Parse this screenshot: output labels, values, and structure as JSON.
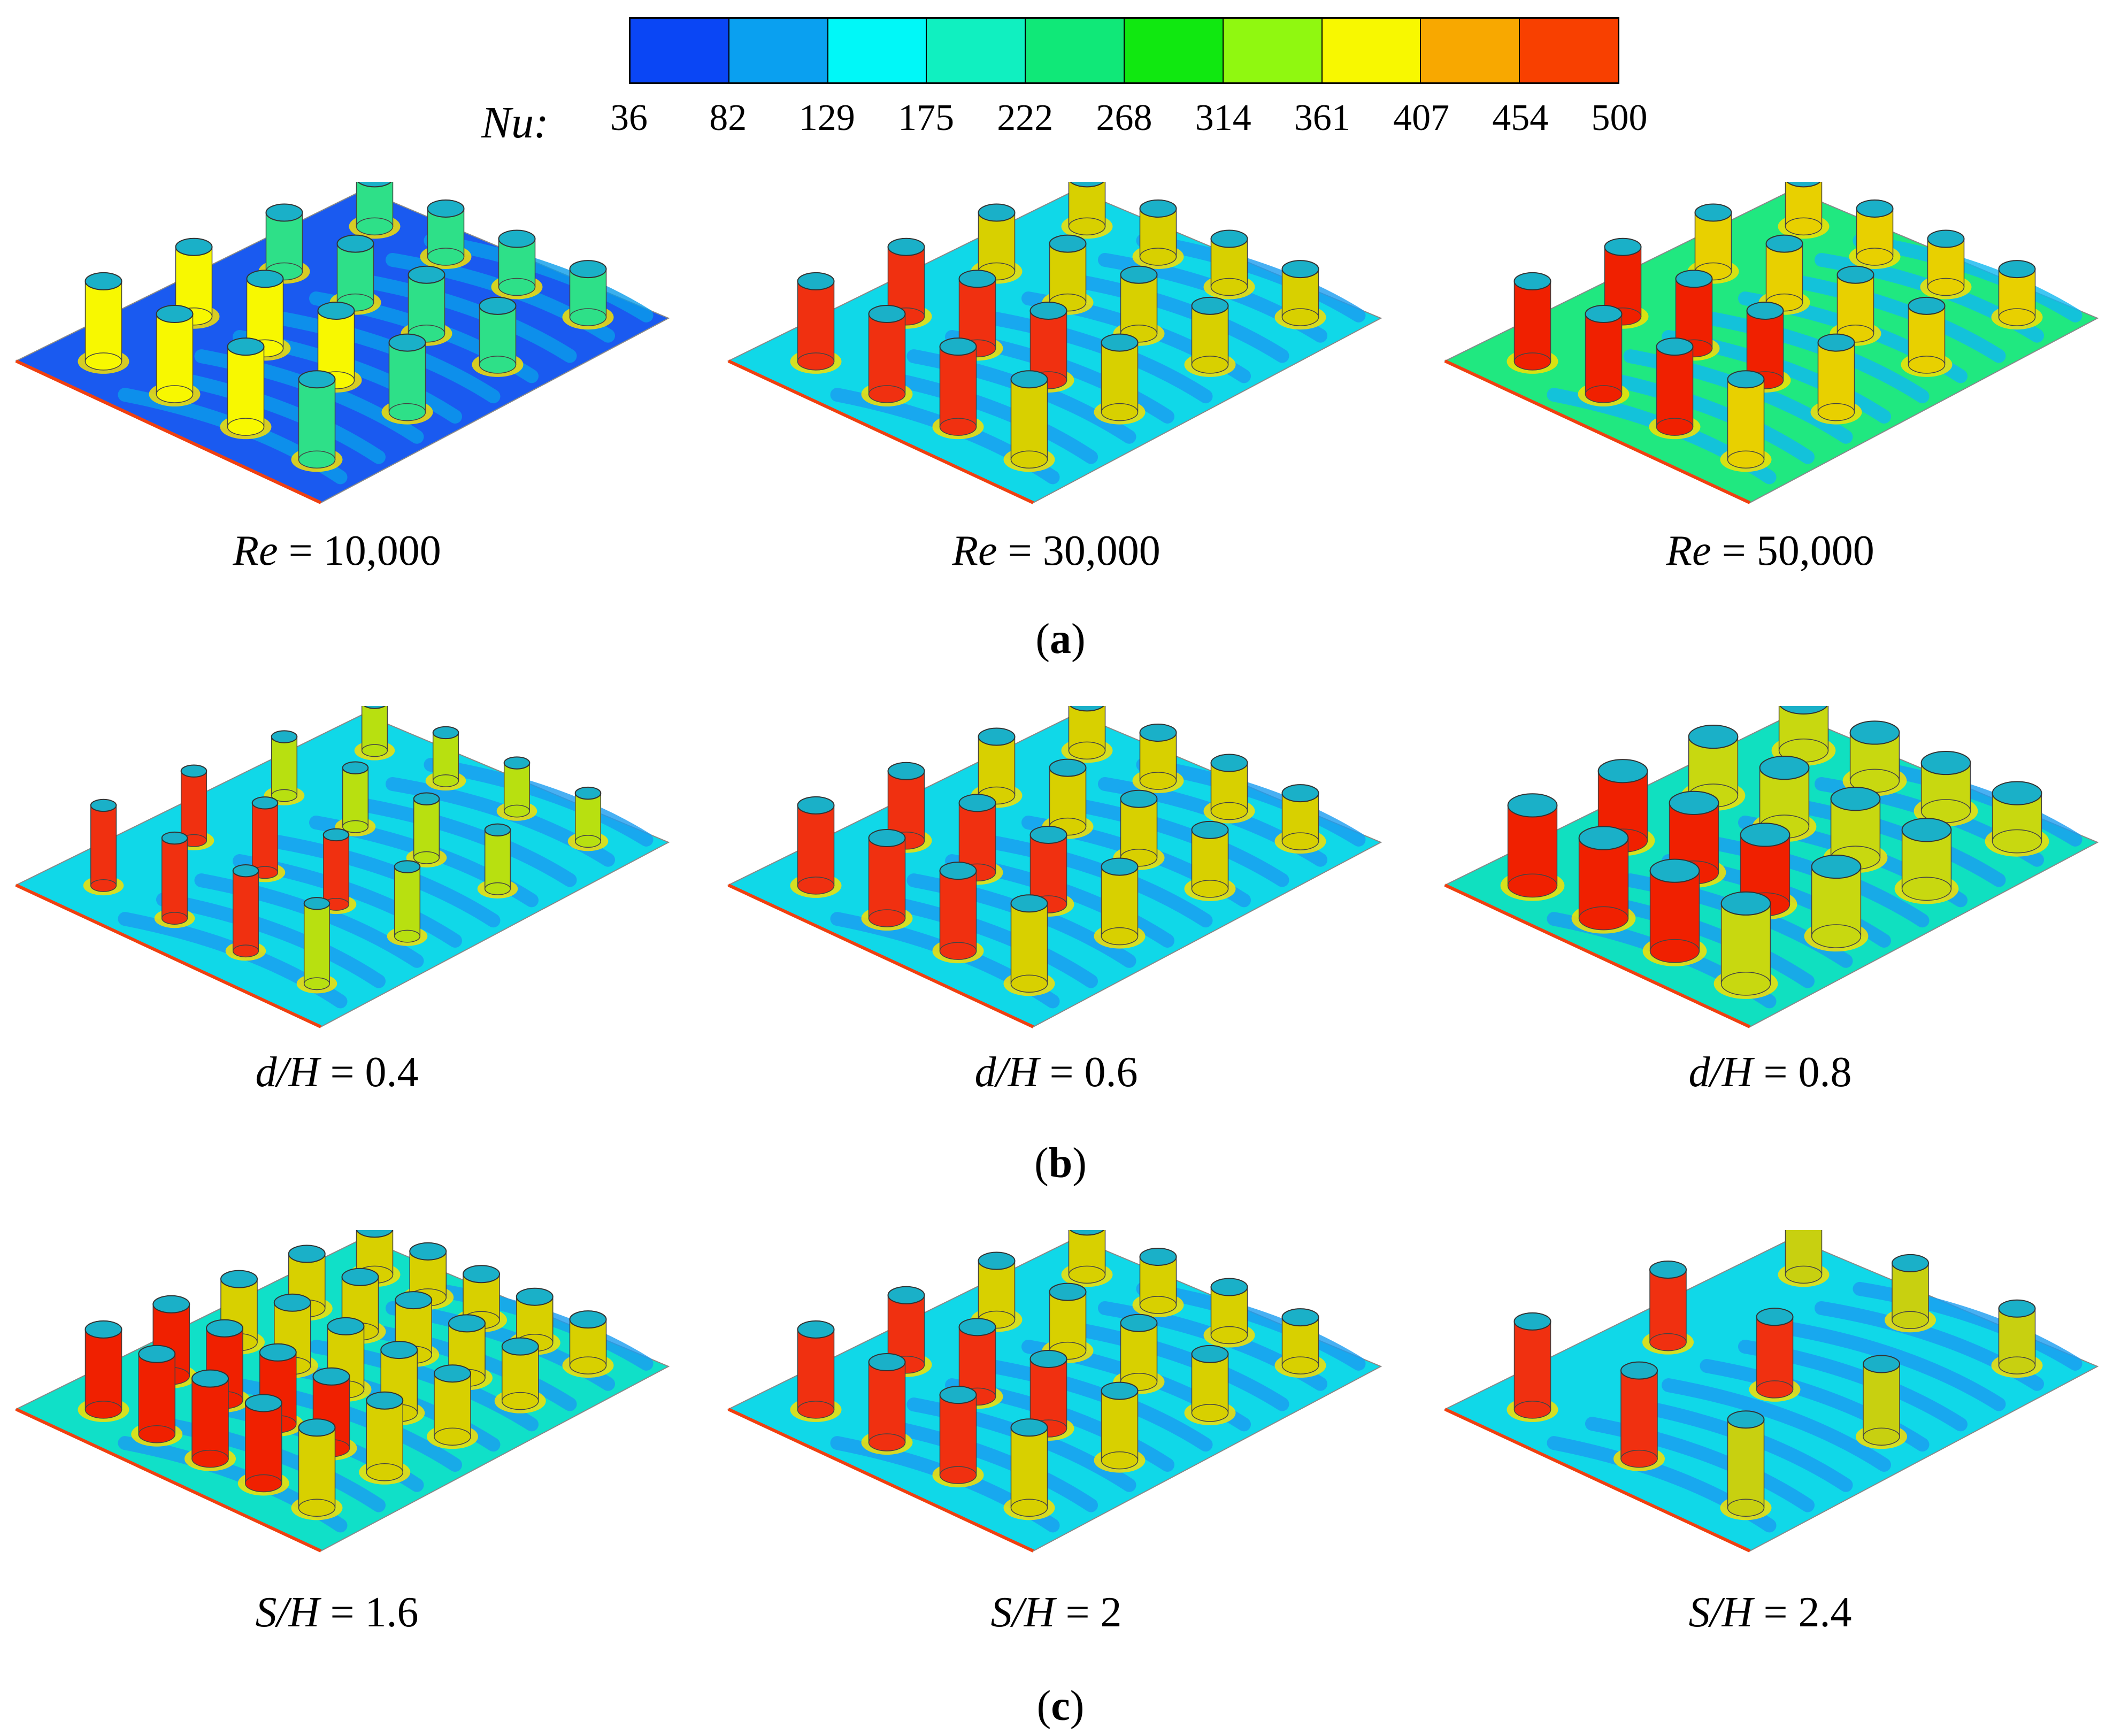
{
  "colorbar": {
    "title": "Nu:",
    "ticks": [
      "36",
      "82",
      "129",
      "175",
      "222",
      "268",
      "314",
      "361",
      "407",
      "454",
      "500"
    ],
    "colors": [
      "#0a46f5",
      "#0aa0f0",
      "#00f8f8",
      "#10f0c0",
      "#10e878",
      "#10e810",
      "#90f810",
      "#f8f800",
      "#f8a800",
      "#f84000"
    ]
  },
  "groups": [
    {
      "label": "a",
      "panels": [
        {
          "caption": "Re = 10,000",
          "caption_var": "Re",
          "caption_rest": " = 10,000",
          "plate_color": "#1a5af0",
          "wake_color": "#0a9cea",
          "cyl_color": "#2ee088",
          "hot_color": "#f8f800"
        },
        {
          "caption": "Re = 30,000",
          "caption_var": "Re",
          "caption_rest": " = 30,000",
          "plate_color": "#10d8e8",
          "wake_color": "#1a9cf0",
          "cyl_color": "#d8d000",
          "hot_color": "#f03010"
        },
        {
          "caption": "Re = 50,000",
          "caption_var": "Re",
          "caption_rest": " = 50,000",
          "plate_color": "#20e880",
          "wake_color": "#10b8f0",
          "cyl_color": "#e8d000",
          "hot_color": "#f02000"
        }
      ]
    },
    {
      "label": "b",
      "panels": [
        {
          "caption": "d/H = 0.4",
          "caption_var": "d/H",
          "caption_rest": " = 0.4",
          "plate_color": "#10d8e8",
          "wake_color": "#1a9cf0",
          "cyl_color": "#b8e010",
          "hot_color": "#f03010"
        },
        {
          "caption": "d/H = 0.6",
          "caption_var": "d/H",
          "caption_rest": " = 0.6",
          "plate_color": "#10d8e8",
          "wake_color": "#1a9cf0",
          "cyl_color": "#d8d000",
          "hot_color": "#f03010"
        },
        {
          "caption": "d/H = 0.8",
          "caption_var": "d/H",
          "caption_rest": " = 0.8",
          "plate_color": "#10e0c0",
          "wake_color": "#1a9cf0",
          "cyl_color": "#c8d810",
          "hot_color": "#f02000"
        }
      ]
    },
    {
      "label": "c",
      "panels": [
        {
          "caption": "S/H = 1.6",
          "caption_var": "S/H",
          "caption_rest": " = 1.6",
          "plate_color": "#10e0c8",
          "wake_color": "#1a9cf0",
          "cyl_color": "#d8d000",
          "hot_color": "#f02000"
        },
        {
          "caption": "S/H = 2",
          "caption_var": "S/H",
          "caption_rest": " = 2",
          "plate_color": "#10d8e8",
          "wake_color": "#1a9cf0",
          "cyl_color": "#d8d000",
          "hot_color": "#f03010"
        },
        {
          "caption": "S/H = 2.4",
          "caption_var": "S/H",
          "caption_rest": " = 2.4",
          "plate_color": "#10d8e8",
          "wake_color": "#1a9cf0",
          "cyl_color": "#c8d010",
          "hot_color": "#f03010"
        }
      ]
    }
  ]
}
